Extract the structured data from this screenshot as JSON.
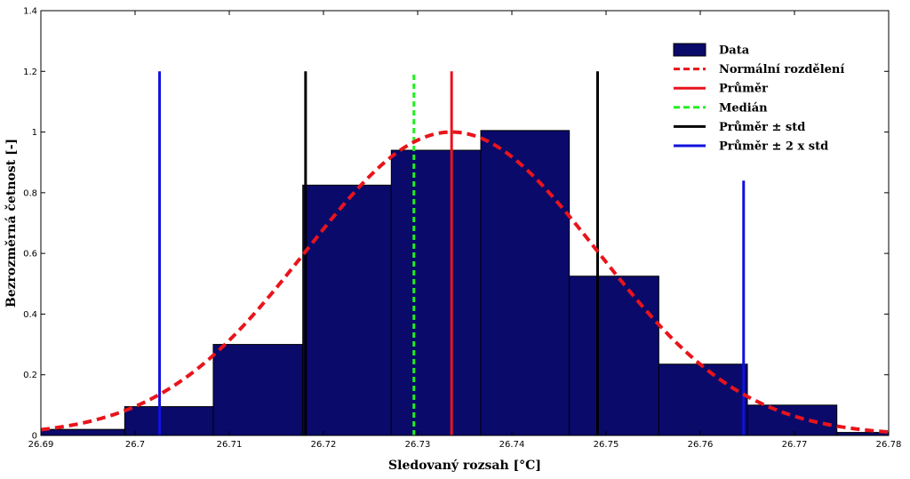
{
  "chart_data": {
    "type": "bar",
    "title": "",
    "xlabel": "Sledovaný rozsah  [°C]",
    "ylabel": "Bezrozměrná četnost [-]",
    "xlim": [
      26.69,
      26.78
    ],
    "ylim": [
      0,
      1.4
    ],
    "xticks": [
      "26.69",
      "26.7",
      "26.71",
      "26.72",
      "26.73",
      "26.74",
      "26.75",
      "26.76",
      "26.77",
      "26.78"
    ],
    "yticks": [
      "0",
      "0.2",
      "0.4",
      "0.6",
      "0.8",
      "1",
      "1.2",
      "1.4"
    ],
    "grid": false,
    "legend_position": "top-right",
    "bar_color": "#0a0a6b",
    "histogram": {
      "name": "Data",
      "bin_edges": [
        26.6894,
        26.6989,
        26.7083,
        26.7178,
        26.7272,
        26.7367,
        26.7461,
        26.7556,
        26.765,
        26.7745,
        26.7839
      ],
      "values": [
        0.02,
        0.095,
        0.3,
        0.825,
        0.94,
        1.005,
        0.525,
        0.235,
        0.1,
        0.01
      ]
    },
    "normal_curve": {
      "name": "Normální rozdělení",
      "color": "#e8141c",
      "mean": 26.7336,
      "std": 0.0155,
      "peak": 1.0
    },
    "vlines": [
      {
        "name": "Průměr",
        "x": 26.7336,
        "ymax": 1.2,
        "color": "#e8141c",
        "style": "solid"
      },
      {
        "name": "Medián",
        "x": 26.7296,
        "ymax": 1.2,
        "color": "#22ee22",
        "style": "dashed"
      },
      {
        "name": "Průměr ± std",
        "x": 26.7181,
        "ymax": 1.2,
        "color": "#000000",
        "style": "solid"
      },
      {
        "name": "Průměr ± std",
        "x": 26.7491,
        "ymax": 1.2,
        "color": "#000000",
        "style": "solid"
      },
      {
        "name": "Průměr ± 2 x std",
        "x": 26.7026,
        "ymax": 1.2,
        "color": "#1111dd",
        "style": "solid"
      },
      {
        "name": "Průměr ± 2 x std",
        "x": 26.7646,
        "ymax": 0.84,
        "color": "#1111dd",
        "style": "solid"
      }
    ],
    "legend": [
      {
        "label": "Data",
        "kind": "patch",
        "color": "#0a0a6b"
      },
      {
        "label": "Normální rozdělení",
        "kind": "dashed",
        "color": "#e8141c"
      },
      {
        "label": "Průměr",
        "kind": "solid",
        "color": "#e8141c"
      },
      {
        "label": "Medián",
        "kind": "dashed",
        "color": "#22ee22"
      },
      {
        "label": "Průměr ± std",
        "kind": "solid",
        "color": "#000000"
      },
      {
        "label": "Průměr ± 2 x std",
        "kind": "solid",
        "color": "#1111dd"
      }
    ]
  }
}
